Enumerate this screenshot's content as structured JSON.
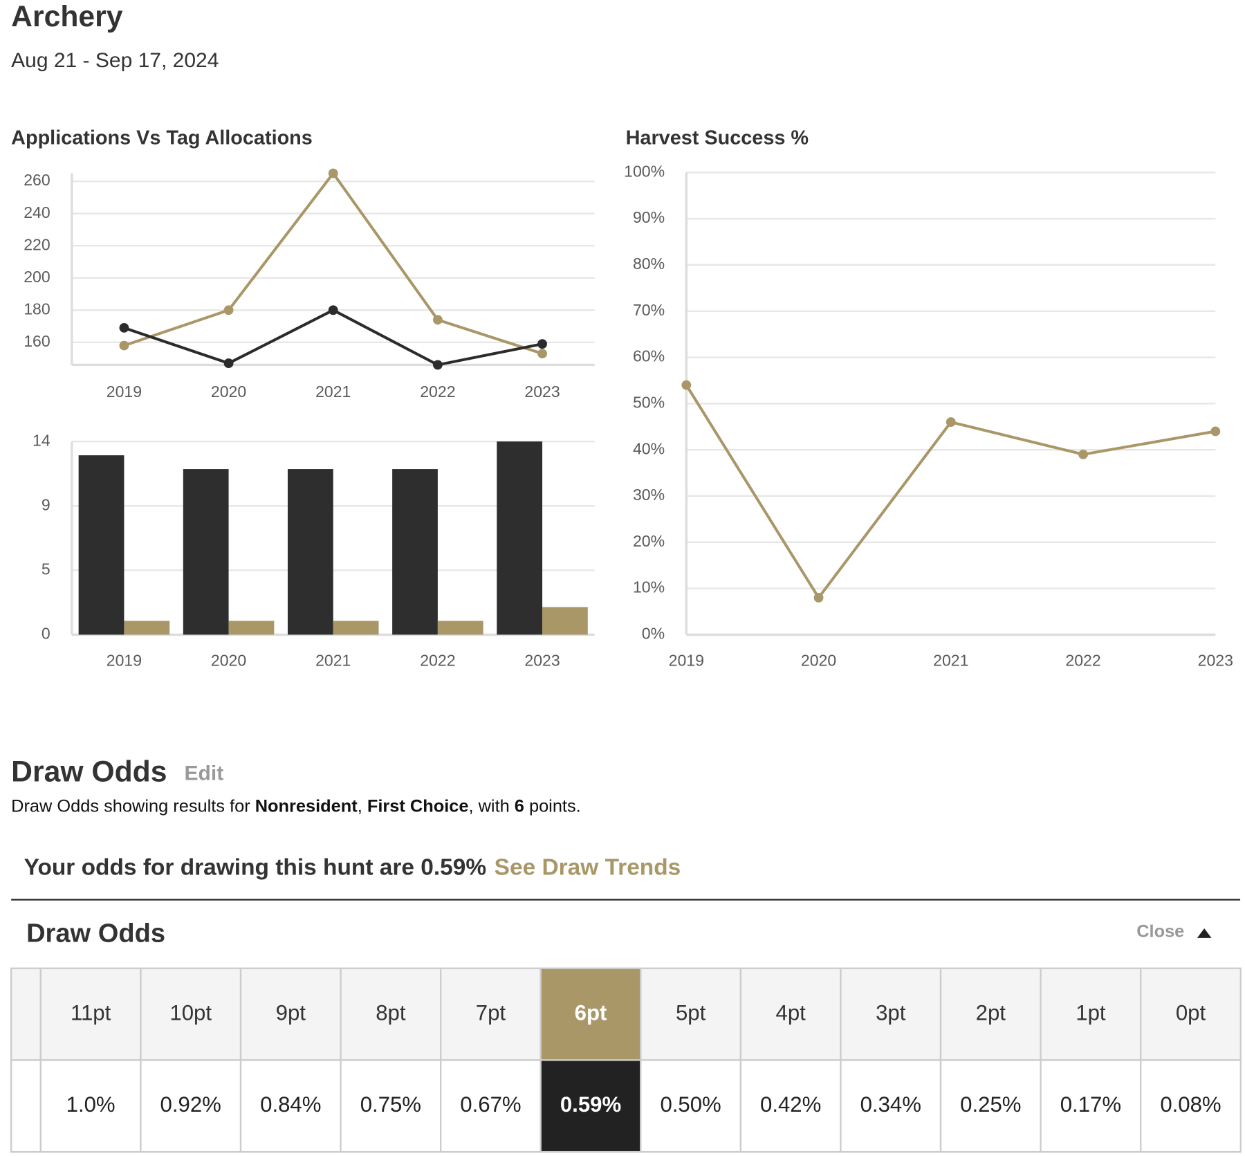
{
  "header": {
    "title": "Archery",
    "subtitle": "Aug 21 - Sep 17, 2024"
  },
  "chart_data": [
    {
      "type": "line",
      "title": "Applications Vs Tag Allocations",
      "categories": [
        "2019",
        "2020",
        "2021",
        "2022",
        "2023"
      ],
      "series": [
        {
          "color": "#a99768",
          "values": [
            158,
            180,
            265,
            174,
            153
          ]
        },
        {
          "color": "#2b2b2b",
          "values": [
            169,
            147,
            180,
            146,
            159
          ]
        }
      ],
      "ylim": [
        146,
        265
      ],
      "yticks": [
        160,
        180,
        200,
        220,
        240,
        260
      ],
      "grid": true
    },
    {
      "type": "bar",
      "categories": [
        "2019",
        "2020",
        "2021",
        "2022",
        "2023"
      ],
      "series": [
        {
          "color": "#2e2e2e",
          "values": [
            13,
            12,
            12,
            12,
            14
          ]
        },
        {
          "color": "#a99768",
          "values": [
            1,
            1,
            1,
            1,
            2
          ]
        }
      ],
      "ylim": [
        0,
        14
      ],
      "yticks": [
        0,
        {
          "value": 4.67,
          "label": "5"
        },
        {
          "value": 9.33,
          "label": "9"
        },
        14
      ],
      "grid": true
    },
    {
      "type": "line",
      "title": "Harvest Success %",
      "categories": [
        "2019",
        "2020",
        "2021",
        "2022",
        "2023"
      ],
      "series": [
        {
          "color": "#a99768",
          "values": [
            54,
            8,
            46,
            39,
            44
          ]
        }
      ],
      "ylim": [
        0,
        100
      ],
      "yticks": [
        {
          "value": 0,
          "label": "0%"
        },
        {
          "value": 10,
          "label": "10%"
        },
        {
          "value": 20,
          "label": "20%"
        },
        {
          "value": 30,
          "label": "30%"
        },
        {
          "value": 40,
          "label": "40%"
        },
        {
          "value": 50,
          "label": "50%"
        },
        {
          "value": 60,
          "label": "60%"
        },
        {
          "value": 70,
          "label": "70%"
        },
        {
          "value": 80,
          "label": "80%"
        },
        {
          "value": 90,
          "label": "90%"
        },
        {
          "value": 100,
          "label": "100%"
        }
      ],
      "grid": true
    }
  ],
  "draw_odds": {
    "title": "Draw Odds",
    "edit": "Edit",
    "description": [
      "Draw Odds showing results for ",
      "Nonresident",
      ", ",
      "First Choice",
      ", with ",
      "6",
      " points."
    ],
    "odds_text": "Your odds for drawing this hunt are 0.59%",
    "trends_link": "See Draw Trends",
    "panel_title": "Draw Odds",
    "close": "Close",
    "table": {
      "headers": [
        "11pt",
        "10pt",
        "9pt",
        "8pt",
        "7pt",
        "6pt",
        "5pt",
        "4pt",
        "3pt",
        "2pt",
        "1pt",
        "0pt"
      ],
      "values": [
        "1.0%",
        "0.92%",
        "0.84%",
        "0.75%",
        "0.67%",
        "0.59%",
        "0.50%",
        "0.42%",
        "0.34%",
        "0.25%",
        "0.17%",
        "0.08%"
      ],
      "selected": 5
    }
  }
}
